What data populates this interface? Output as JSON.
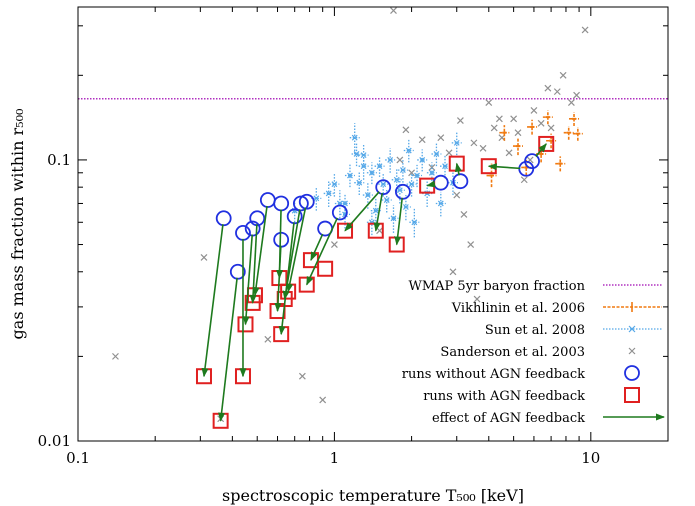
{
  "chart_data": {
    "type": "scatter",
    "title": "",
    "xscale": "log",
    "yscale": "log",
    "xlim": [
      0.1,
      20
    ],
    "ylim": [
      0.01,
      0.35
    ],
    "xticks": [
      {
        "value": 0.1,
        "label": "0.1"
      },
      {
        "value": 1,
        "label": "1"
      },
      {
        "value": 10,
        "label": "10"
      }
    ],
    "yticks": [
      {
        "value": 0.01,
        "label": "0.01"
      },
      {
        "value": 0.1,
        "label": "0.1"
      }
    ],
    "xlabel": "spectroscopic temperature T₅₀₀ [keV]",
    "ylabel": "gas mass fraction within r₅₀₀",
    "legend_position": "bottom-right",
    "colors": {
      "wmap": "#b030c0",
      "vikhlinin": "#f07a10",
      "sun": "#55a8e8",
      "sanderson": "#909090",
      "no_agn": "#2030e0",
      "agn": "#e02020",
      "arrow": "#1e7a1e"
    },
    "wmap_baryon_fraction": 0.165,
    "legend": [
      {
        "key": "wmap",
        "label": "WMAP 5yr baryon fraction"
      },
      {
        "key": "vikhlinin",
        "label": "Vikhlinin et al. 2006"
      },
      {
        "key": "sun",
        "label": "Sun et al. 2008"
      },
      {
        "key": "sanderson",
        "label": "Sanderson et al. 2003"
      },
      {
        "key": "no_agn",
        "label": "runs without AGN feedback"
      },
      {
        "key": "agn",
        "label": "runs with AGN feedback"
      },
      {
        "key": "arrow",
        "label": "effect of AGN feedback"
      }
    ],
    "series": [
      {
        "name": "Vikhlinin et al. 2006",
        "key": "vikhlinin",
        "points": [
          [
            4.1,
            0.088,
            0.08,
            0.097
          ],
          [
            5.2,
            0.112,
            0.104,
            0.12
          ],
          [
            4.6,
            0.125,
            0.117,
            0.133
          ],
          [
            5.9,
            0.131,
            0.123,
            0.139
          ],
          [
            6.4,
            0.105,
            0.098,
            0.112
          ],
          [
            7.0,
            0.117,
            0.11,
            0.124
          ],
          [
            7.6,
            0.097,
            0.091,
            0.103
          ],
          [
            8.2,
            0.125,
            0.118,
            0.132
          ],
          [
            8.6,
            0.14,
            0.132,
            0.148
          ],
          [
            8.9,
            0.124,
            0.117,
            0.131
          ],
          [
            6.8,
            0.142,
            0.134,
            0.15
          ],
          [
            5.6,
            0.094,
            0.088,
            0.1
          ]
        ]
      },
      {
        "name": "Sun et al. 2008",
        "key": "sun",
        "points": [
          [
            0.7,
            0.066,
            0.06,
            0.073
          ],
          [
            0.85,
            0.073,
            0.066,
            0.08
          ],
          [
            0.95,
            0.076,
            0.068,
            0.084
          ],
          [
            1.0,
            0.082,
            0.074,
            0.09
          ],
          [
            1.05,
            0.07,
            0.062,
            0.078
          ],
          [
            1.1,
            0.064,
            0.057,
            0.071
          ],
          [
            1.15,
            0.088,
            0.08,
            0.097
          ],
          [
            1.2,
            0.12,
            0.105,
            0.135
          ],
          [
            1.22,
            0.105,
            0.095,
            0.115
          ],
          [
            1.25,
            0.083,
            0.075,
            0.091
          ],
          [
            1.3,
            0.095,
            0.085,
            0.105
          ],
          [
            1.35,
            0.075,
            0.067,
            0.083
          ],
          [
            1.4,
            0.09,
            0.082,
            0.098
          ],
          [
            1.45,
            0.066,
            0.059,
            0.073
          ],
          [
            1.5,
            0.095,
            0.087,
            0.103
          ],
          [
            1.55,
            0.082,
            0.074,
            0.09
          ],
          [
            1.6,
            0.072,
            0.065,
            0.079
          ],
          [
            1.65,
            0.1,
            0.09,
            0.11
          ],
          [
            1.7,
            0.062,
            0.055,
            0.069
          ],
          [
            1.75,
            0.085,
            0.077,
            0.093
          ],
          [
            1.8,
            0.078,
            0.07,
            0.086
          ],
          [
            1.85,
            0.092,
            0.083,
            0.101
          ],
          [
            1.9,
            0.068,
            0.061,
            0.075
          ],
          [
            1.95,
            0.108,
            0.098,
            0.118
          ],
          [
            2.0,
            0.082,
            0.074,
            0.09
          ],
          [
            2.05,
            0.06,
            0.053,
            0.067
          ],
          [
            2.1,
            0.088,
            0.08,
            0.096
          ],
          [
            2.2,
            0.1,
            0.091,
            0.109
          ],
          [
            2.3,
            0.076,
            0.068,
            0.084
          ],
          [
            2.4,
            0.09,
            0.082,
            0.098
          ],
          [
            2.5,
            0.105,
            0.095,
            0.115
          ],
          [
            2.6,
            0.07,
            0.063,
            0.077
          ],
          [
            2.7,
            0.095,
            0.086,
            0.104
          ],
          [
            2.9,
            0.083,
            0.075,
            0.091
          ],
          [
            3.0,
            0.115,
            0.104,
            0.126
          ],
          [
            1.4,
            0.06,
            0.054,
            0.066
          ],
          [
            1.3,
            0.104,
            0.094,
            0.114
          ],
          [
            1.1,
            0.07,
            0.064,
            0.076
          ]
        ]
      },
      {
        "name": "Sanderson et al. 2003",
        "key": "sanderson",
        "points": [
          [
            0.14,
            0.02
          ],
          [
            0.31,
            0.045
          ],
          [
            0.36,
            0.012
          ],
          [
            0.55,
            0.023
          ],
          [
            0.75,
            0.017
          ],
          [
            0.9,
            0.014
          ],
          [
            1.0,
            0.05
          ],
          [
            1.5,
            0.056
          ],
          [
            1.7,
            0.34
          ],
          [
            1.8,
            0.1
          ],
          [
            2.0,
            0.09
          ],
          [
            2.2,
            0.118
          ],
          [
            2.4,
            0.094
          ],
          [
            2.6,
            0.12
          ],
          [
            2.8,
            0.106
          ],
          [
            2.9,
            0.04
          ],
          [
            3.0,
            0.075
          ],
          [
            3.2,
            0.064
          ],
          [
            3.4,
            0.05
          ],
          [
            3.5,
            0.115
          ],
          [
            3.8,
            0.11
          ],
          [
            4.0,
            0.16
          ],
          [
            4.2,
            0.13
          ],
          [
            4.5,
            0.12
          ],
          [
            4.8,
            0.106
          ],
          [
            5.0,
            0.14
          ],
          [
            5.2,
            0.125
          ],
          [
            5.5,
            0.085
          ],
          [
            5.8,
            0.1
          ],
          [
            6.0,
            0.15
          ],
          [
            6.4,
            0.135
          ],
          [
            7.0,
            0.13
          ],
          [
            7.4,
            0.175
          ],
          [
            7.8,
            0.2
          ],
          [
            8.4,
            0.16
          ],
          [
            8.8,
            0.17
          ],
          [
            9.5,
            0.29
          ],
          [
            3.6,
            0.032
          ],
          [
            4.4,
            0.14
          ],
          [
            6.8,
            0.18
          ],
          [
            1.9,
            0.128
          ],
          [
            3.1,
            0.138
          ]
        ]
      },
      {
        "name": "runs without AGN feedback",
        "key": "no_agn",
        "points": [
          [
            0.37,
            0.062
          ],
          [
            0.42,
            0.04
          ],
          [
            0.44,
            0.055
          ],
          [
            0.48,
            0.057
          ],
          [
            0.5,
            0.062
          ],
          [
            0.55,
            0.072
          ],
          [
            0.62,
            0.052
          ],
          [
            0.62,
            0.07
          ],
          [
            0.7,
            0.063
          ],
          [
            0.74,
            0.07
          ],
          [
            0.78,
            0.071
          ],
          [
            0.92,
            0.057
          ],
          [
            1.05,
            0.065
          ],
          [
            1.55,
            0.08
          ],
          [
            1.85,
            0.077
          ],
          [
            2.6,
            0.083
          ],
          [
            3.1,
            0.084
          ],
          [
            5.6,
            0.093
          ],
          [
            5.9,
            0.099
          ]
        ]
      },
      {
        "name": "runs with AGN feedback",
        "key": "agn",
        "points": [
          [
            0.31,
            0.017
          ],
          [
            0.36,
            0.0118
          ],
          [
            0.44,
            0.017
          ],
          [
            0.45,
            0.026
          ],
          [
            0.48,
            0.031
          ],
          [
            0.49,
            0.033
          ],
          [
            0.6,
            0.029
          ],
          [
            0.61,
            0.038
          ],
          [
            0.62,
            0.024
          ],
          [
            0.64,
            0.032
          ],
          [
            0.66,
            0.034
          ],
          [
            0.78,
            0.036
          ],
          [
            0.81,
            0.044
          ],
          [
            0.92,
            0.041
          ],
          [
            1.1,
            0.056
          ],
          [
            1.45,
            0.056
          ],
          [
            1.75,
            0.05
          ],
          [
            2.3,
            0.081
          ],
          [
            3.0,
            0.097
          ],
          [
            4.0,
            0.095
          ],
          [
            6.7,
            0.114
          ]
        ]
      },
      {
        "name": "effect of AGN feedback",
        "key": "arrow",
        "arrows": [
          [
            0.37,
            0.062,
            0.31,
            0.017
          ],
          [
            0.42,
            0.04,
            0.36,
            0.0118
          ],
          [
            0.44,
            0.055,
            0.44,
            0.017
          ],
          [
            0.48,
            0.057,
            0.45,
            0.026
          ],
          [
            0.5,
            0.062,
            0.48,
            0.031
          ],
          [
            0.55,
            0.072,
            0.49,
            0.033
          ],
          [
            0.62,
            0.052,
            0.6,
            0.029
          ],
          [
            0.62,
            0.07,
            0.61,
            0.038
          ],
          [
            0.7,
            0.063,
            0.62,
            0.024
          ],
          [
            0.74,
            0.07,
            0.64,
            0.032
          ],
          [
            0.78,
            0.071,
            0.66,
            0.034
          ],
          [
            0.92,
            0.057,
            0.81,
            0.044
          ],
          [
            1.05,
            0.065,
            0.78,
            0.036
          ],
          [
            1.55,
            0.08,
            1.1,
            0.056
          ],
          [
            1.55,
            0.08,
            1.45,
            0.056
          ],
          [
            1.85,
            0.077,
            1.75,
            0.05
          ],
          [
            2.6,
            0.083,
            2.3,
            0.081
          ],
          [
            3.1,
            0.084,
            3.0,
            0.097
          ],
          [
            5.6,
            0.093,
            4.0,
            0.095
          ],
          [
            5.9,
            0.099,
            6.7,
            0.114
          ]
        ]
      }
    ]
  }
}
